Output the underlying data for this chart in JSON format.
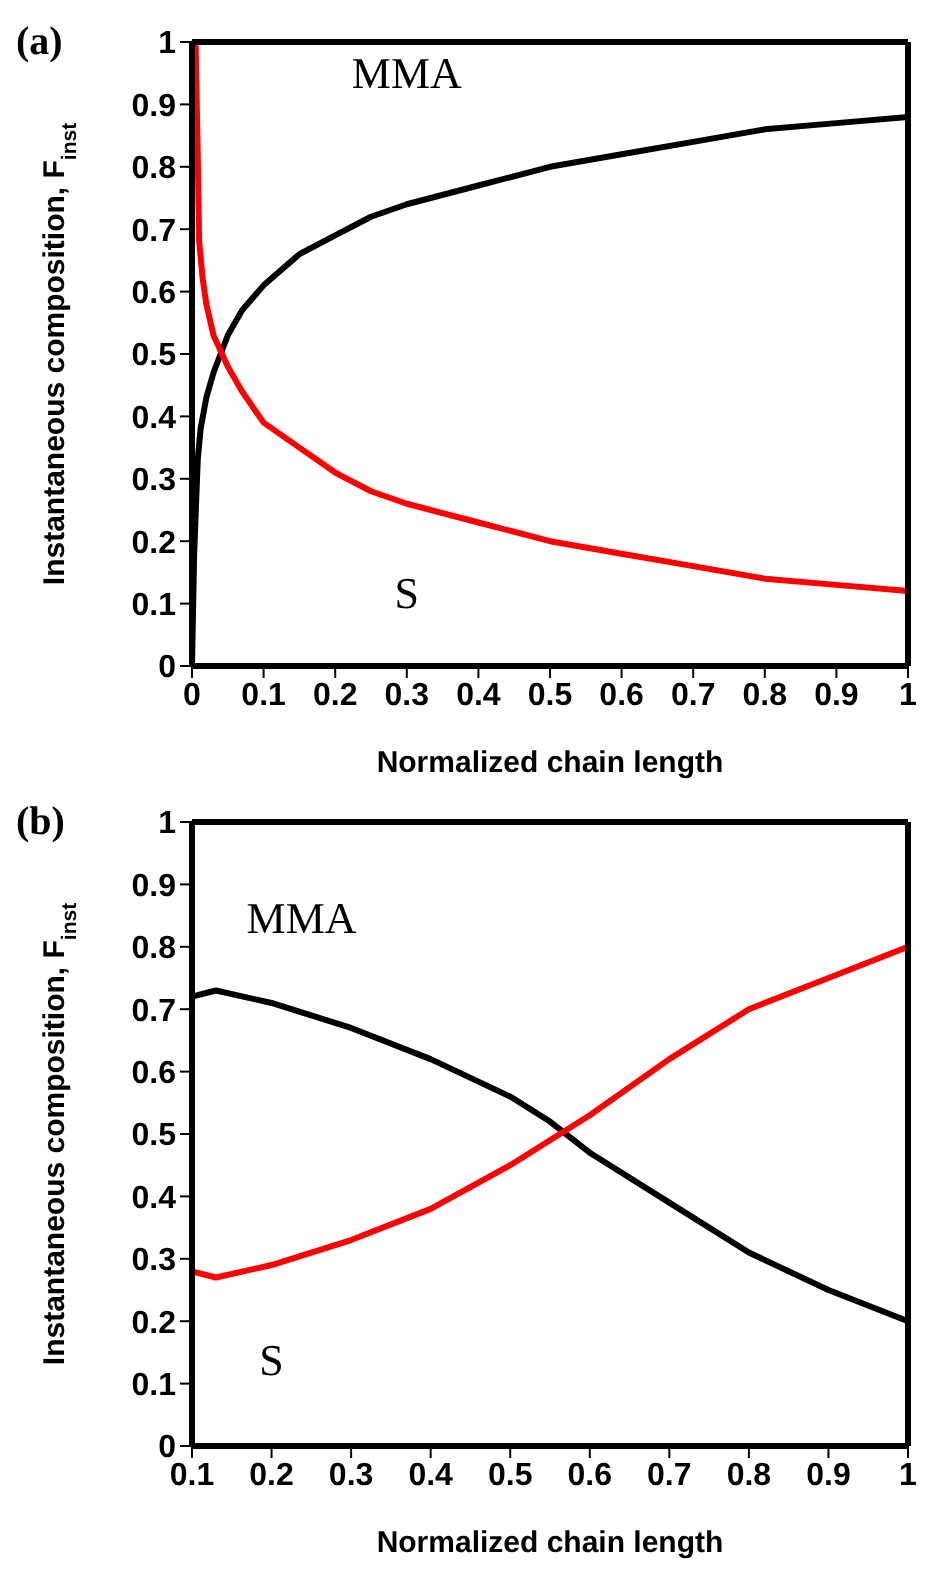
{
  "chart_data": [
    {
      "type": "line",
      "title": "(a)",
      "xlabel": "Normalized chain length",
      "ylabel": "Instantaneous composition, F$_{inst}$",
      "xlim": [
        0,
        1
      ],
      "xticks": [
        0,
        0.1,
        0.2,
        0.3,
        0.4,
        0.5,
        0.6,
        0.7,
        0.8,
        0.9,
        1
      ],
      "ylim": [
        0,
        1
      ],
      "yticks": [
        0,
        0.1,
        0.2,
        0.3,
        0.4,
        0.5,
        0.6,
        0.7,
        0.8,
        0.9,
        1
      ],
      "legend": false,
      "series": [
        {
          "name": "MMA",
          "color": "#000000",
          "x": [
            0,
            0.003,
            0.008,
            0.012,
            0.02,
            0.03,
            0.05,
            0.07,
            0.1,
            0.15,
            0.2,
            0.25,
            0.3,
            0.4,
            0.5,
            0.6,
            0.7,
            0.8,
            0.9,
            1
          ],
          "values": [
            0,
            0.18,
            0.33,
            0.38,
            0.43,
            0.47,
            0.53,
            0.57,
            0.61,
            0.66,
            0.69,
            0.72,
            0.74,
            0.77,
            0.8,
            0.82,
            0.84,
            0.86,
            0.87,
            0.88
          ]
        },
        {
          "name": "S",
          "color": "#ff0000",
          "x": [
            0.005,
            0.008,
            0.01,
            0.015,
            0.02,
            0.03,
            0.05,
            0.07,
            0.1,
            0.15,
            0.2,
            0.25,
            0.3,
            0.4,
            0.5,
            0.6,
            0.7,
            0.8,
            0.9,
            1
          ],
          "values": [
            1,
            0.82,
            0.68,
            0.62,
            0.58,
            0.53,
            0.48,
            0.44,
            0.39,
            0.35,
            0.31,
            0.28,
            0.26,
            0.23,
            0.2,
            0.18,
            0.16,
            0.14,
            0.13,
            0.12
          ]
        }
      ]
    },
    {
      "type": "line",
      "title": "(b)",
      "xlabel": "Normalized chain length",
      "ylabel": "Instantaneous composition, F$_{inst}$",
      "xlim": [
        0.1,
        1
      ],
      "xticks": [
        0.1,
        0.2,
        0.3,
        0.4,
        0.5,
        0.6,
        0.7,
        0.8,
        0.9,
        1
      ],
      "ylim": [
        0,
        1
      ],
      "yticks": [
        0,
        0.1,
        0.2,
        0.3,
        0.4,
        0.5,
        0.6,
        0.7,
        0.8,
        0.9,
        1
      ],
      "legend": false,
      "series": [
        {
          "name": "MMA",
          "color": "#000000",
          "x": [
            0.1,
            0.13,
            0.2,
            0.3,
            0.4,
            0.5,
            0.55,
            0.6,
            0.7,
            0.8,
            0.9,
            1
          ],
          "values": [
            0.72,
            0.73,
            0.71,
            0.67,
            0.62,
            0.56,
            0.52,
            0.47,
            0.39,
            0.31,
            0.25,
            0.2
          ]
        },
        {
          "name": "S",
          "color": "#ff0000",
          "x": [
            0.1,
            0.13,
            0.2,
            0.3,
            0.4,
            0.5,
            0.55,
            0.6,
            0.7,
            0.8,
            0.9,
            1
          ],
          "values": [
            0.28,
            0.27,
            0.29,
            0.33,
            0.38,
            0.45,
            0.49,
            0.53,
            0.62,
            0.7,
            0.75,
            0.8
          ]
        }
      ]
    }
  ]
}
